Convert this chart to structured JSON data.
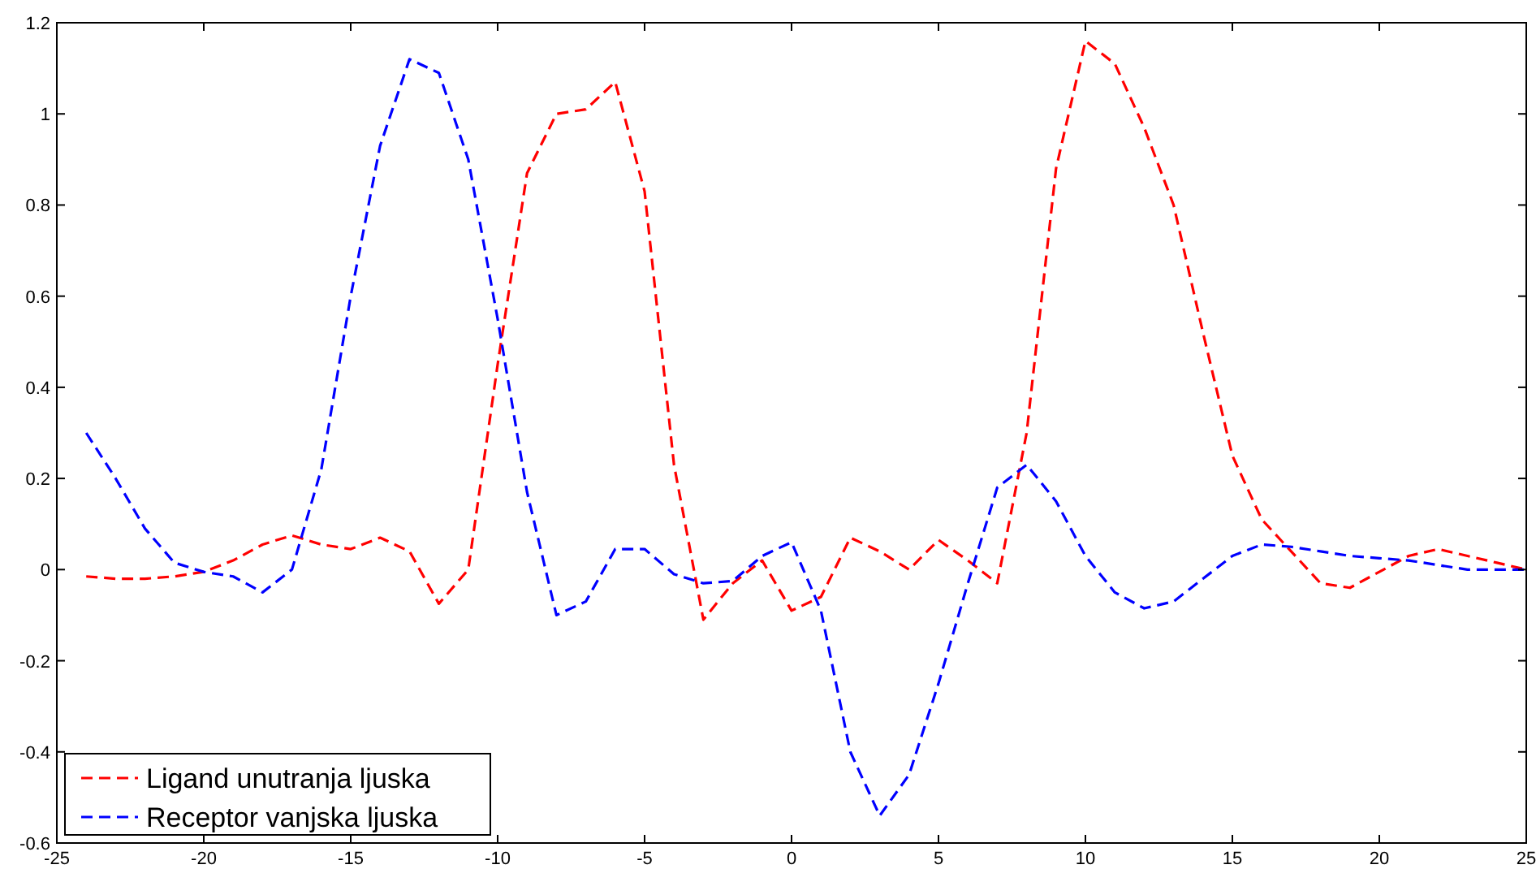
{
  "chart_data": {
    "type": "line",
    "x": [
      -24,
      -23,
      -22,
      -21,
      -20,
      -19,
      -18,
      -17,
      -16,
      -15,
      -14,
      -13,
      -12,
      -11,
      -10,
      -9,
      -8,
      -7,
      -6,
      -5,
      -4,
      -3,
      -2,
      -1,
      0,
      1,
      2,
      3,
      4,
      5,
      6,
      7,
      8,
      9,
      10,
      11,
      12,
      13,
      14,
      15,
      16,
      17,
      18,
      19,
      20,
      21,
      22,
      23,
      24,
      25
    ],
    "series": [
      {
        "name": "Ligand unutranja ljuska",
        "color": "#ff0000",
        "values": [
          -0.015,
          -0.02,
          -0.02,
          -0.015,
          -0.005,
          0.02,
          0.055,
          0.075,
          0.055,
          0.045,
          0.07,
          0.04,
          -0.075,
          0.0,
          0.45,
          0.87,
          1.0,
          1.01,
          1.07,
          0.83,
          0.23,
          -0.11,
          -0.03,
          0.02,
          -0.09,
          -0.06,
          0.07,
          0.04,
          0.0,
          0.065,
          0.02,
          -0.03,
          0.3,
          0.88,
          1.16,
          1.11,
          0.97,
          0.8,
          0.52,
          0.25,
          0.11,
          0.04,
          -0.03,
          -0.04,
          -0.005,
          0.03,
          0.045,
          0.03,
          0.015,
          0.0
        ]
      },
      {
        "name": "Receptor vanjska ljuska",
        "color": "#0000ff",
        "values": [
          0.3,
          0.2,
          0.09,
          0.015,
          -0.005,
          -0.015,
          -0.05,
          0.0,
          0.22,
          0.6,
          0.93,
          1.12,
          1.09,
          0.9,
          0.55,
          0.17,
          -0.1,
          -0.07,
          0.045,
          0.045,
          -0.01,
          -0.03,
          -0.025,
          0.03,
          0.06,
          -0.09,
          -0.4,
          -0.54,
          -0.45,
          -0.25,
          -0.03,
          0.18,
          0.23,
          0.15,
          0.03,
          -0.05,
          -0.085,
          -0.07,
          -0.02,
          0.03,
          0.055,
          0.05,
          0.04,
          0.03,
          0.025,
          0.02,
          0.01,
          0.0,
          0.0,
          0.0
        ]
      }
    ],
    "xlim": [
      -25,
      25
    ],
    "xticks": [
      -25,
      -20,
      -15,
      -10,
      -5,
      0,
      5,
      10,
      15,
      20,
      25
    ],
    "ylim": [
      -0.6,
      1.2
    ],
    "yticks": [
      -0.6,
      -0.4,
      -0.2,
      0,
      0.2,
      0.4,
      0.6,
      0.8,
      1,
      1.2
    ],
    "grid": false,
    "legend": "bottom left",
    "line_style": "dashed",
    "marker": "none"
  }
}
